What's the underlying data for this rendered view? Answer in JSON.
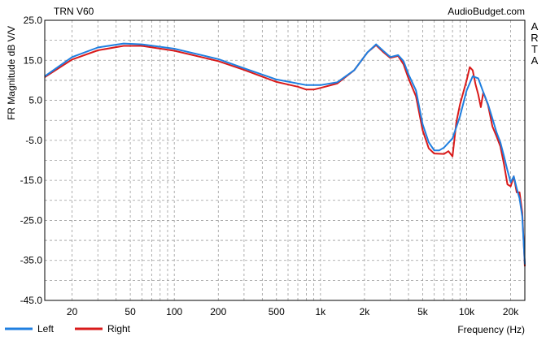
{
  "chart_data": {
    "type": "line",
    "title": "TRN V60",
    "watermark": "AudioBudget.com",
    "side_label": [
      "A",
      "R",
      "T",
      "A"
    ],
    "xlabel": "Frequency (Hz)",
    "ylabel": "FR Magnitude dB V/V",
    "x_scale": "log",
    "xlim": [
      13,
      25000
    ],
    "ylim": [
      -45,
      25
    ],
    "grid": true,
    "x_ticks": [
      {
        "value": 20,
        "label": "20"
      },
      {
        "value": 50,
        "label": "50"
      },
      {
        "value": 100,
        "label": "100"
      },
      {
        "value": 200,
        "label": "200"
      },
      {
        "value": 500,
        "label": "500"
      },
      {
        "value": 1000,
        "label": "1k"
      },
      {
        "value": 2000,
        "label": "2k"
      },
      {
        "value": 5000,
        "label": "5k"
      },
      {
        "value": 10000,
        "label": "10k"
      },
      {
        "value": 20000,
        "label": "20k"
      }
    ],
    "y_ticks": [
      {
        "value": 25,
        "label": "25.0"
      },
      {
        "value": 15,
        "label": "15.0"
      },
      {
        "value": 5,
        "label": "5.0"
      },
      {
        "value": -5,
        "label": "-5.0"
      },
      {
        "value": -15,
        "label": "-15.0"
      },
      {
        "value": -25,
        "label": "-25.0"
      },
      {
        "value": -35,
        "label": "-35.0"
      },
      {
        "value": -45,
        "label": "-45.0"
      }
    ],
    "legend_position": "bottom-left",
    "series": [
      {
        "name": "Left",
        "color": "#1f7fe0",
        "points": [
          [
            13,
            11.0
          ],
          [
            20,
            15.8
          ],
          [
            30,
            18.2
          ],
          [
            45,
            19.2
          ],
          [
            60,
            19.0
          ],
          [
            100,
            17.9
          ],
          [
            200,
            15.3
          ],
          [
            300,
            13.0
          ],
          [
            500,
            10.2
          ],
          [
            800,
            8.8
          ],
          [
            1000,
            8.8
          ],
          [
            1300,
            9.5
          ],
          [
            1700,
            12.5
          ],
          [
            2100,
            17.0
          ],
          [
            2400,
            19.0
          ],
          [
            2700,
            17.3
          ],
          [
            3000,
            15.8
          ],
          [
            3400,
            16.3
          ],
          [
            3700,
            14.8
          ],
          [
            4000,
            11.5
          ],
          [
            4500,
            7.5
          ],
          [
            5000,
            -1.0
          ],
          [
            5500,
            -5.5
          ],
          [
            6000,
            -7.5
          ],
          [
            6500,
            -7.5
          ],
          [
            7000,
            -6.8
          ],
          [
            8000,
            -4.5
          ],
          [
            9000,
            1.0
          ],
          [
            10000,
            7.5
          ],
          [
            11000,
            11.0
          ],
          [
            12000,
            10.5
          ],
          [
            13000,
            7.0
          ],
          [
            14000,
            4.0
          ],
          [
            15000,
            0.5
          ],
          [
            16000,
            -3.0
          ],
          [
            17000,
            -5.5
          ],
          [
            18000,
            -9.0
          ],
          [
            19000,
            -12.5
          ],
          [
            20000,
            -15.5
          ],
          [
            21000,
            -14.0
          ],
          [
            22000,
            -17.0
          ],
          [
            23000,
            -19.5
          ],
          [
            24000,
            -24.0
          ],
          [
            25000,
            -36.0
          ]
        ]
      },
      {
        "name": "Right",
        "color": "#d91a1a",
        "points": [
          [
            13,
            10.8
          ],
          [
            20,
            15.2
          ],
          [
            30,
            17.5
          ],
          [
            45,
            18.6
          ],
          [
            60,
            18.6
          ],
          [
            100,
            17.4
          ],
          [
            200,
            14.8
          ],
          [
            300,
            12.6
          ],
          [
            500,
            9.6
          ],
          [
            700,
            8.4
          ],
          [
            800,
            7.7
          ],
          [
            900,
            7.7
          ],
          [
            1000,
            8.1
          ],
          [
            1300,
            9.2
          ],
          [
            1700,
            12.5
          ],
          [
            2100,
            17.0
          ],
          [
            2400,
            18.8
          ],
          [
            2700,
            17.0
          ],
          [
            3000,
            15.6
          ],
          [
            3400,
            16.1
          ],
          [
            3700,
            14.0
          ],
          [
            4000,
            10.5
          ],
          [
            4500,
            6.0
          ],
          [
            5000,
            -2.5
          ],
          [
            5500,
            -7.0
          ],
          [
            6000,
            -8.3
          ],
          [
            7000,
            -8.4
          ],
          [
            7500,
            -7.7
          ],
          [
            8000,
            -9.0
          ],
          [
            8500,
            -0.5
          ],
          [
            9000,
            4.0
          ],
          [
            10000,
            10.0
          ],
          [
            10500,
            13.3
          ],
          [
            11000,
            12.5
          ],
          [
            11500,
            9.0
          ],
          [
            12000,
            6.5
          ],
          [
            12500,
            3.3
          ],
          [
            13000,
            7.0
          ],
          [
            14000,
            3.8
          ],
          [
            15000,
            -1.5
          ],
          [
            16000,
            -4.0
          ],
          [
            17000,
            -6.5
          ],
          [
            18000,
            -11.0
          ],
          [
            19000,
            -16.0
          ],
          [
            20000,
            -16.5
          ],
          [
            21000,
            -14.0
          ],
          [
            22000,
            -18.0
          ],
          [
            23000,
            -18.0
          ],
          [
            24000,
            -23.0
          ],
          [
            25000,
            -36.5
          ]
        ]
      }
    ]
  }
}
